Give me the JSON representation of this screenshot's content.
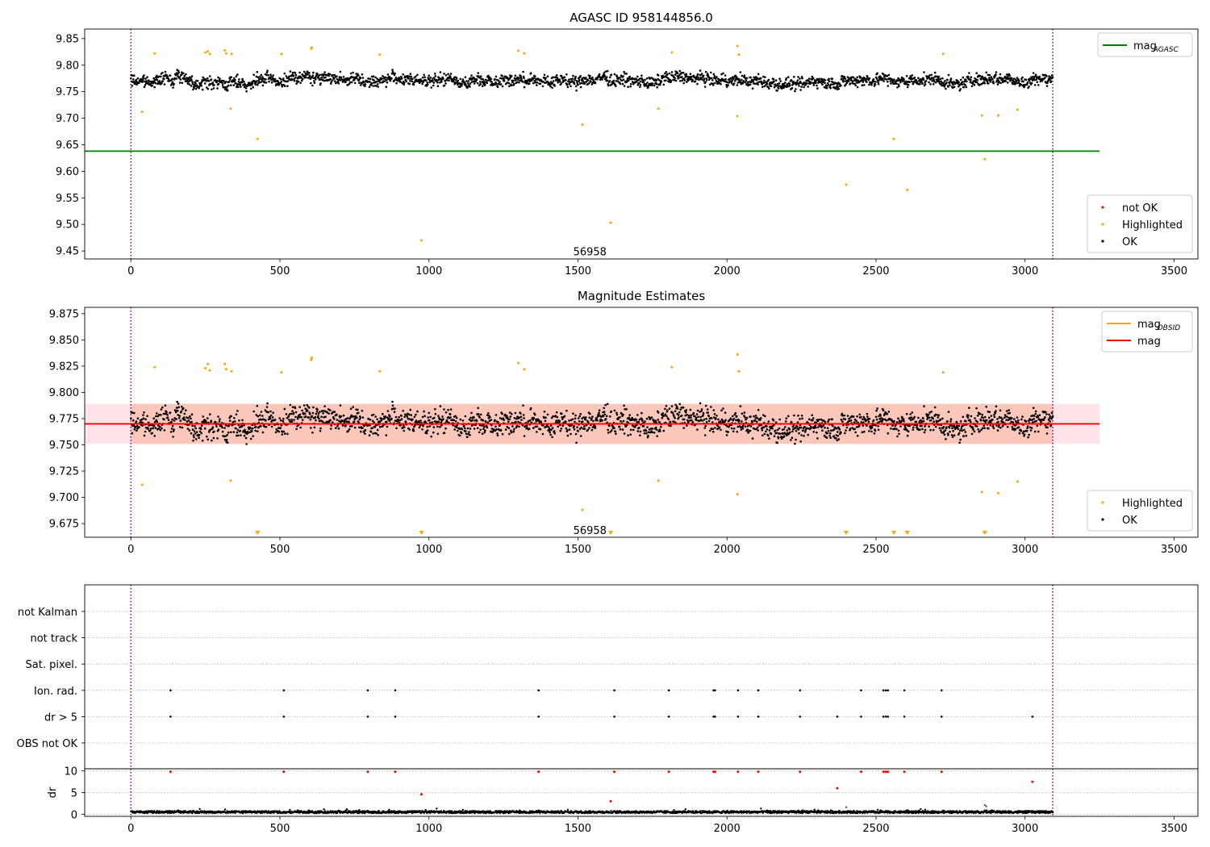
{
  "chart_data": [
    {
      "type": "scatter",
      "title": "AGASC ID 958144856.0",
      "xlim": [
        -155,
        3580
      ],
      "ylim": [
        9.435,
        9.868
      ],
      "xticks": [
        0,
        500,
        1000,
        1500,
        2000,
        2500,
        3000,
        3500
      ],
      "yticks": [
        9.45,
        9.5,
        9.55,
        9.6,
        9.65,
        9.7,
        9.75,
        9.8,
        9.85
      ],
      "tick_decimals": 2,
      "vlines": [
        0,
        3093
      ],
      "hline": {
        "name": "mag_AGASC",
        "value": 9.638,
        "x_range": [
          -155,
          3250
        ],
        "color": "#008000"
      },
      "band": null,
      "annotation": {
        "text": "56958",
        "x": 1540,
        "y": 9.448
      },
      "legend_top": [
        {
          "label": "mag",
          "sub": "AGASC",
          "color": "#008000"
        }
      ],
      "legend_bottom": [
        {
          "label": "not OK",
          "color": "#ff0000"
        },
        {
          "label": "Highlighted",
          "color": "#ffa500"
        },
        {
          "label": "OK",
          "color": "#000000"
        }
      ],
      "ok_series": {
        "name": "OK",
        "color": "#000000",
        "n": 2250,
        "x_start": 0,
        "x_end": 3093,
        "mean": 9.771,
        "noise": 0.011,
        "seed": 7
      },
      "highlighted": {
        "name": "Highlighted",
        "color": "#ffa500",
        "points": [
          [
            38,
            9.712
          ],
          [
            80,
            9.822
          ],
          [
            250,
            9.824
          ],
          [
            258,
            9.826
          ],
          [
            265,
            9.821
          ],
          [
            315,
            9.828
          ],
          [
            320,
            9.822
          ],
          [
            335,
            9.718
          ],
          [
            338,
            9.821
          ],
          [
            425,
            9.661
          ],
          [
            505,
            9.821
          ],
          [
            605,
            9.831
          ],
          [
            607,
            9.833
          ],
          [
            835,
            9.82
          ],
          [
            975,
            9.47
          ],
          [
            1300,
            9.827
          ],
          [
            1320,
            9.822
          ],
          [
            1515,
            9.688
          ],
          [
            1610,
            9.503
          ],
          [
            1770,
            9.718
          ],
          [
            1815,
            9.824
          ],
          [
            2035,
            9.704
          ],
          [
            2035,
            9.836
          ],
          [
            2040,
            9.82
          ],
          [
            2400,
            9.575
          ],
          [
            2560,
            9.661
          ],
          [
            2605,
            9.565
          ],
          [
            2725,
            9.821
          ],
          [
            2855,
            9.705
          ],
          [
            2865,
            9.623
          ],
          [
            2910,
            9.705
          ],
          [
            2975,
            9.716
          ]
        ]
      }
    },
    {
      "type": "scatter",
      "title": "Magnitude Estimates",
      "xlim": [
        -155,
        3580
      ],
      "ylim": [
        9.662,
        9.881
      ],
      "xticks": [
        0,
        500,
        1000,
        1500,
        2000,
        2500,
        3000,
        3500
      ],
      "yticks": [
        9.675,
        9.7,
        9.725,
        9.75,
        9.775,
        9.8,
        9.825,
        9.85,
        9.875
      ],
      "tick_decimals": 3,
      "vlines": [
        0,
        3093
      ],
      "hline": {
        "name": "mag",
        "value": 9.77,
        "x_range": [
          -155,
          3250
        ],
        "color": "#ff0000"
      },
      "band": {
        "y_range": [
          9.751,
          9.789
        ],
        "x_range": [
          -155,
          3250
        ],
        "left_end": 0,
        "right_start": 3093
      },
      "annotation": {
        "text": "56958",
        "x": 1540,
        "y": 9.668
      },
      "legend_top": [
        {
          "label": "mag",
          "sub": "OBSID",
          "color": "#ffa500"
        },
        {
          "label": "mag",
          "sub": "",
          "color": "#ff0000"
        }
      ],
      "legend_bottom": [
        {
          "label": "Highlighted",
          "color": "#ffa500"
        },
        {
          "label": "OK",
          "color": "#000000"
        }
      ],
      "ok_series": {
        "name": "OK",
        "color": "#000000",
        "n": 2250,
        "x_start": 0,
        "x_end": 3093,
        "mean": 9.771,
        "noise": 0.011,
        "seed": 7
      },
      "highlighted": {
        "name": "Highlighted",
        "color": "#ffa500",
        "points": [
          [
            38,
            9.712
          ],
          [
            80,
            9.824
          ],
          [
            250,
            9.823
          ],
          [
            258,
            9.827
          ],
          [
            265,
            9.821
          ],
          [
            315,
            9.827
          ],
          [
            320,
            9.822
          ],
          [
            335,
            9.716
          ],
          [
            338,
            9.82
          ],
          [
            505,
            9.819
          ],
          [
            605,
            9.831
          ],
          [
            607,
            9.833
          ],
          [
            835,
            9.82
          ],
          [
            1300,
            9.828
          ],
          [
            1320,
            9.822
          ],
          [
            1515,
            9.688
          ],
          [
            1770,
            9.716
          ],
          [
            1815,
            9.824
          ],
          [
            2035,
            9.703
          ],
          [
            2035,
            9.836
          ],
          [
            2040,
            9.82
          ],
          [
            2725,
            9.819
          ],
          [
            2855,
            9.705
          ],
          [
            2910,
            9.704
          ],
          [
            2975,
            9.715
          ]
        ]
      },
      "offscale_markers": {
        "color": "#ffa500",
        "x": [
          425,
          975,
          1610,
          2400,
          2560,
          2605,
          2865
        ]
      }
    },
    {
      "type": "scatter",
      "title": "",
      "xlim": [
        -155,
        3580
      ],
      "categories": [
        "not Kalman",
        "not track",
        "Sat. pixel.",
        "Ion. rad.",
        "dr > 5",
        "OBS not OK"
      ],
      "vlines": [
        0,
        3093
      ],
      "flag_points": {
        "Ion. rad.": [
          133,
          513,
          795,
          887,
          1368,
          1622,
          1805,
          1955,
          1960,
          2037,
          2105,
          2245,
          2450,
          2525,
          2533,
          2540,
          2595,
          2720
        ],
        "dr > 5": [
          133,
          513,
          795,
          887,
          1368,
          1622,
          1805,
          1955,
          1960,
          2037,
          2105,
          2245,
          2370,
          2450,
          2525,
          2533,
          2540,
          2595,
          2720,
          3025
        ]
      },
      "dr_panel": {
        "ylabel": "dr",
        "ylim": [
          -0.5,
          10.5
        ],
        "yticks": [
          0,
          5,
          10
        ],
        "red_points": [
          [
            133,
            9.8
          ],
          [
            513,
            9.8
          ],
          [
            795,
            9.8
          ],
          [
            887,
            9.8
          ],
          [
            1368,
            9.8
          ],
          [
            1622,
            9.8
          ],
          [
            1805,
            9.8
          ],
          [
            1955,
            9.8
          ],
          [
            1960,
            9.8
          ],
          [
            2037,
            9.8
          ],
          [
            2105,
            9.8
          ],
          [
            2245,
            9.8
          ],
          [
            2450,
            9.8
          ],
          [
            2525,
            9.8
          ],
          [
            2533,
            9.8
          ],
          [
            2540,
            9.8
          ],
          [
            2595,
            9.8
          ],
          [
            2720,
            9.8
          ],
          [
            975,
            4.6
          ],
          [
            1610,
            3.0
          ],
          [
            2370,
            6.0
          ],
          [
            3025,
            7.5
          ]
        ],
        "grey_points": [
          [
            2400,
            1.6
          ],
          [
            2865,
            2.1
          ],
          [
            2870,
            1.8
          ],
          [
            1610,
            0.6
          ]
        ],
        "base": {
          "mean": 0.5,
          "noise": 0.25,
          "n": 2250
        }
      },
      "xticks": [
        0,
        500,
        1000,
        1500,
        2000,
        2500,
        3000,
        3500
      ]
    }
  ],
  "colors": {
    "vline": "#800080",
    "grid": "#b0b0b0",
    "band_fill": "#f4a582",
    "band_edge": "#ffc0cb",
    "not_ok": "#ff0000"
  }
}
